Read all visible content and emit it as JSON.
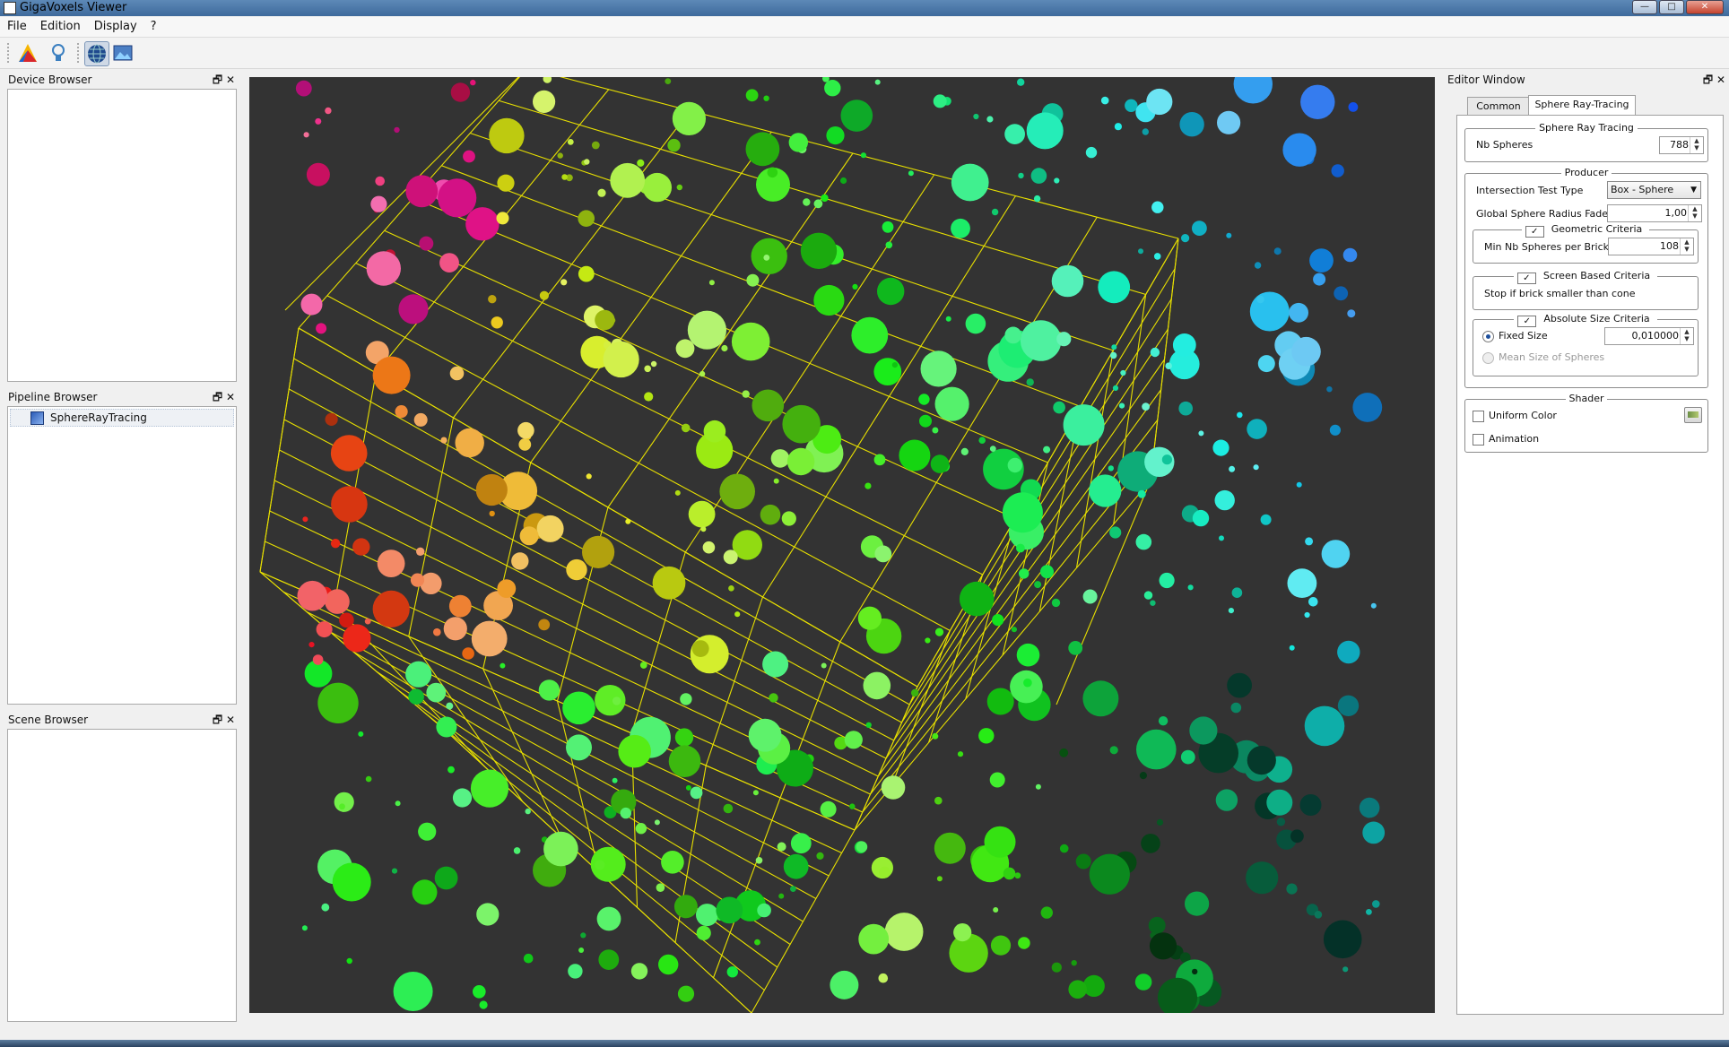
{
  "window": {
    "title": "GigaVoxels Viewer"
  },
  "menu": [
    "File",
    "Edition",
    "Display",
    "?"
  ],
  "toolbar": {
    "icons": [
      "transfer-function-icon",
      "light-bulb-icon",
      "globe-icon",
      "image-icon"
    ]
  },
  "docks": {
    "device_browser": {
      "title": "Device Browser"
    },
    "pipeline_browser": {
      "title": "Pipeline Browser",
      "items": [
        "SphereRayTracing"
      ]
    },
    "scene_browser": {
      "title": "Scene Browser"
    },
    "buttons": {
      "float": "🗗",
      "close": "✕"
    }
  },
  "editor": {
    "title": "Editor Window",
    "tabs": [
      "Common",
      "Sphere Ray-Tracing"
    ],
    "active_tab": "Sphere Ray-Tracing",
    "sphere_ray_tracing": {
      "title": "Sphere Ray Tracing",
      "nb_spheres_label": "Nb Spheres",
      "nb_spheres": "788"
    },
    "producer": {
      "title": "Producer",
      "intersection_label": "Intersection Test Type",
      "intersection_value": "Box - Sphere",
      "radius_fader_label": "Global Sphere Radius Fader",
      "radius_fader_value": "1,00",
      "geometric": {
        "title": "Geometric Criteria",
        "checked": true,
        "min_label": "Min Nb Spheres per Brick",
        "min_value": "108"
      },
      "screen": {
        "title": "Screen Based Criteria",
        "checked": true,
        "text": "Stop if brick smaller than cone"
      },
      "absolute": {
        "title": "Absolute Size Criteria",
        "checked": true,
        "fixed_label": "Fixed Size",
        "fixed_value": "0,010000",
        "mean_label": "Mean Size of Spheres"
      }
    },
    "shader": {
      "title": "Shader",
      "uniform_color": "Uniform Color",
      "animation": "Animation"
    }
  },
  "colors": {
    "viewport_bg": "#333333",
    "grid": "#e8e000"
  }
}
